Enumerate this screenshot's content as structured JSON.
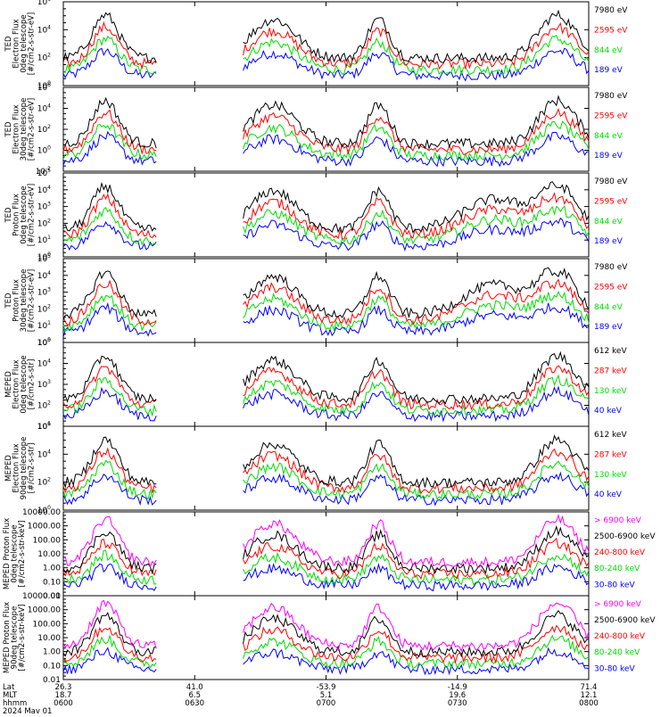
{
  "chart_data": [
    {
      "type": "line",
      "instrument": "TED",
      "ylabel_lines": [
        "TED",
        "Electron Flux",
        "0deg telescope",
        "[#/cm2-s-str-eV]"
      ],
      "scale": "log",
      "yticks": [
        "10^0",
        "10^2",
        "10^4",
        "10^6"
      ],
      "series": [
        {
          "name": "7980 eV",
          "color": "#000000"
        },
        {
          "name": "2595 eV",
          "color": "#ff0000"
        },
        {
          "name": "844 eV",
          "color": "#00dd00"
        },
        {
          "name": "189 eV",
          "color": "#0000ff"
        }
      ]
    },
    {
      "type": "line",
      "instrument": "TED",
      "ylabel_lines": [
        "TED",
        "Electron Flux",
        "30deg telescope",
        "[#/cm2-s-str-eV]"
      ],
      "scale": "log",
      "yticks": [
        "10^-2",
        "10^0",
        "10^2",
        "10^4",
        "10^6"
      ],
      "series": [
        {
          "name": "7980 eV",
          "color": "#000000"
        },
        {
          "name": "2595 eV",
          "color": "#ff0000"
        },
        {
          "name": "844 eV",
          "color": "#00dd00"
        },
        {
          "name": "189 eV",
          "color": "#0000ff"
        }
      ]
    },
    {
      "type": "line",
      "instrument": "TED",
      "ylabel_lines": [
        "TED",
        "Proton Flux",
        "0deg telescope",
        "[#/cm2-s-str-eV]"
      ],
      "scale": "log",
      "yticks": [
        "10^0",
        "10^1",
        "10^2",
        "10^3",
        "10^4",
        "10^5"
      ],
      "series": [
        {
          "name": "7980 eV",
          "color": "#000000"
        },
        {
          "name": "2595 eV",
          "color": "#ff0000"
        },
        {
          "name": "844 eV",
          "color": "#00dd00"
        },
        {
          "name": "189 eV",
          "color": "#0000ff"
        }
      ]
    },
    {
      "type": "line",
      "instrument": "TED",
      "ylabel_lines": [
        "TED",
        "Proton Flux",
        "30deg telescope",
        "[#/cm2-s-str-eV]"
      ],
      "scale": "log",
      "yticks": [
        "10^0",
        "10^1",
        "10^2",
        "10^3",
        "10^4",
        "10^5"
      ],
      "series": [
        {
          "name": "7980 eV",
          "color": "#000000"
        },
        {
          "name": "2595 eV",
          "color": "#ff0000"
        },
        {
          "name": "844 eV",
          "color": "#00dd00"
        },
        {
          "name": "189 eV",
          "color": "#0000ff"
        }
      ]
    },
    {
      "type": "line",
      "instrument": "MEPED",
      "ylabel_lines": [
        "MEPED",
        "Electron Flux",
        "0deg telescope",
        "[#/cm2-s-str]"
      ],
      "scale": "log",
      "yticks": [
        "10^1",
        "10^2",
        "10^3",
        "10^4",
        "10^5"
      ],
      "series": [
        {
          "name": "612 keV",
          "color": "#000000"
        },
        {
          "name": "287 keV",
          "color": "#ff0000"
        },
        {
          "name": "130 keV",
          "color": "#00dd00"
        },
        {
          "name": "40 keV",
          "color": "#0000ff"
        }
      ]
    },
    {
      "type": "line",
      "instrument": "MEPED",
      "ylabel_lines": [
        "MEPED",
        "Electron Flux",
        "90deg telescope",
        "[#/cm2-s-str]"
      ],
      "scale": "log",
      "yticks": [
        "10^0",
        "10^2",
        "10^4",
        "10^6"
      ],
      "series": [
        {
          "name": "612 keV",
          "color": "#000000"
        },
        {
          "name": "287 keV",
          "color": "#ff0000"
        },
        {
          "name": "130 keV",
          "color": "#00dd00"
        },
        {
          "name": "40 keV",
          "color": "#0000ff"
        }
      ]
    },
    {
      "type": "line",
      "instrument": "MEPED",
      "ylabel_lines": [
        "MEPED Proton Flux",
        "0deg telescope",
        "[#/cm2-s-str-keV]"
      ],
      "scale": "log",
      "yticks": [
        "0.01",
        "0.10",
        "1.00",
        "10.00",
        "100.00",
        "1000.00",
        "10000.00"
      ],
      "series": [
        {
          "name": "> 6900 keV",
          "color": "#ff00ff"
        },
        {
          "name": "2500-6900 keV",
          "color": "#000000"
        },
        {
          "name": "240-800 keV",
          "color": "#ff0000"
        },
        {
          "name": "80-240 keV",
          "color": "#00dd00"
        },
        {
          "name": "30-80 keV",
          "color": "#0000ff"
        }
      ]
    },
    {
      "type": "line",
      "instrument": "MEPED",
      "ylabel_lines": [
        "MEPED Proton Flux",
        "90deg telescope",
        "[#/cm2-s-str-keV]"
      ],
      "scale": "log",
      "yticks": [
        "0.01",
        "0.10",
        "1.00",
        "10.00",
        "100.00",
        "1000.00",
        "10000.00"
      ],
      "series": [
        {
          "name": "> 6900 keV",
          "color": "#ff00ff"
        },
        {
          "name": "2500-6900 keV",
          "color": "#000000"
        },
        {
          "name": "240-800 keV",
          "color": "#ff0000"
        },
        {
          "name": "80-240 keV",
          "color": "#00dd00"
        },
        {
          "name": "30-80 keV",
          "color": "#0000ff"
        }
      ]
    }
  ],
  "x_axis": {
    "row_labels": [
      "Lat",
      "MLT",
      "hhmm",
      "2024 May 01"
    ],
    "ticks": [
      {
        "lat": "26.3",
        "mlt": "18.7",
        "hhmm": "0600"
      },
      {
        "lat": "41.0",
        "mlt": "6.5",
        "hhmm": "0630"
      },
      {
        "lat": "-53.9",
        "mlt": "5.1",
        "hhmm": "0700"
      },
      {
        "lat": "-14.9",
        "mlt": "19.6",
        "hhmm": "0730"
      },
      {
        "lat": "71.4",
        "mlt": "12.1",
        "hhmm": "0800"
      }
    ]
  }
}
